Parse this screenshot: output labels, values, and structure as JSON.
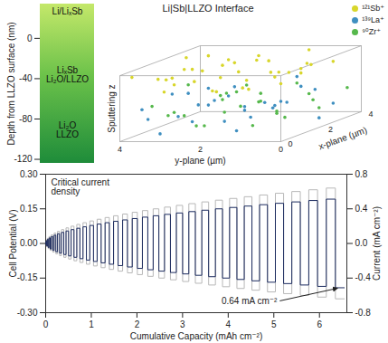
{
  "chart_data": [
    {
      "type": "layers",
      "ylabel": "Depth from LLZO surface (nm)",
      "ylim": [
        -124,
        34
      ],
      "yticks": [
        -120,
        -80,
        -40,
        0
      ],
      "layers": [
        {
          "label": "Li/LiₓSb",
          "depth": 27
        },
        {
          "label": "LiₓSb\nLi₂O/LLZO",
          "depth": -36
        },
        {
          "label": "Li₂O\nLLZO",
          "depth": -91
        }
      ]
    },
    {
      "type": "scatter3d",
      "title": "Li|Sb|LLZO Interface",
      "xlabel": "x-plane (µm)",
      "ylabel": "y-plane (µm)",
      "zlabel": "Sputtering z",
      "xlim": [
        0,
        4
      ],
      "xticks": [
        0,
        2,
        4
      ],
      "ylim": [
        0,
        4
      ],
      "yticks": [
        0,
        2,
        4
      ],
      "zlim": [
        0,
        1
      ],
      "legend": "top-right",
      "series": [
        {
          "name": "¹²¹Sb⁺",
          "color": "#d8d62b",
          "points": [
            [
              0.2,
              3.8,
              0.95
            ],
            [
              0.5,
              3.1,
              0.88
            ],
            [
              0.9,
              2.4,
              0.97
            ],
            [
              1.3,
              1.7,
              0.91
            ],
            [
              1.7,
              0.9,
              0.86
            ],
            [
              2.1,
              0.3,
              0.93
            ],
            [
              2.6,
              3.5,
              0.8
            ],
            [
              3.0,
              2.8,
              0.9
            ],
            [
              3.4,
              2.0,
              0.84
            ],
            [
              3.8,
              1.2,
              0.96
            ],
            [
              0.3,
              1.1,
              0.78
            ],
            [
              0.7,
              0.5,
              0.9
            ],
            [
              1.1,
              3.6,
              0.82
            ],
            [
              1.5,
              2.9,
              0.74
            ],
            [
              1.9,
              2.1,
              0.98
            ],
            [
              2.3,
              1.4,
              0.79
            ],
            [
              2.7,
              0.7,
              0.88
            ],
            [
              3.1,
              3.9,
              0.92
            ],
            [
              3.5,
              3.2,
              0.76
            ],
            [
              3.9,
              2.5,
              0.86
            ],
            [
              0.6,
              2.0,
              0.7
            ],
            [
              1.0,
              1.3,
              0.68
            ],
            [
              1.4,
              0.2,
              0.95
            ],
            [
              1.8,
              3.3,
              0.89
            ],
            [
              2.2,
              2.6,
              0.72
            ],
            [
              2.6,
              1.9,
              0.94
            ],
            [
              3.0,
              1.0,
              0.7
            ],
            [
              3.4,
              0.4,
              0.83
            ],
            [
              3.8,
              3.7,
              0.87
            ],
            [
              0.1,
              2.7,
              0.85
            ],
            [
              2.0,
              1.0,
              0.65
            ],
            [
              1.2,
              2.2,
              0.62
            ],
            [
              2.9,
              2.3,
              0.6
            ],
            [
              0.8,
              3.3,
              0.66
            ],
            [
              3.6,
              1.6,
              0.64
            ],
            [
              2.4,
              3.9,
              0.69
            ]
          ]
        },
        {
          "name": "¹³⁹La⁺",
          "color": "#3f8fc0",
          "points": [
            [
              0.3,
              3.6,
              0.45
            ],
            [
              0.7,
              2.9,
              0.3
            ],
            [
              1.1,
              2.2,
              0.5
            ],
            [
              1.5,
              1.5,
              0.2
            ],
            [
              1.9,
              0.8,
              0.38
            ],
            [
              2.3,
              0.2,
              0.1
            ],
            [
              2.7,
              3.4,
              0.25
            ],
            [
              3.1,
              2.7,
              0.48
            ],
            [
              3.5,
              1.9,
              0.15
            ],
            [
              3.9,
              1.1,
              0.35
            ],
            [
              0.4,
              1.3,
              0.12
            ],
            [
              0.8,
              0.6,
              0.42
            ],
            [
              1.2,
              3.9,
              0.2
            ],
            [
              1.6,
              3.1,
              0.55
            ],
            [
              2.0,
              2.4,
              0.08
            ],
            [
              2.4,
              1.6,
              0.32
            ],
            [
              2.8,
              0.9,
              0.52
            ],
            [
              3.2,
              0.3,
              0.22
            ],
            [
              3.6,
              3.6,
              0.4
            ],
            [
              0.2,
              2.3,
              0.28
            ],
            [
              1.0,
              1.8,
              0.58
            ],
            [
              1.8,
              2.7,
              0.35
            ],
            [
              2.6,
              2.2,
              0.18
            ],
            [
              3.4,
              1.3,
              0.6
            ],
            [
              0.6,
              3.3,
              0.05
            ],
            [
              2.2,
              3.8,
              0.47
            ],
            [
              3.0,
              1.5,
              0.27
            ],
            [
              3.8,
              2.8,
              0.1
            ]
          ]
        },
        {
          "name": "⁹⁰Zr⁺",
          "color": "#56b84c",
          "points": [
            [
              0.4,
              3.0,
              0.35
            ],
            [
              0.8,
              2.3,
              0.15
            ],
            [
              1.2,
              1.6,
              0.4
            ],
            [
              1.6,
              0.9,
              0.28
            ],
            [
              2.0,
              0.3,
              0.5
            ],
            [
              2.4,
              3.6,
              0.12
            ],
            [
              2.8,
              2.9,
              0.38
            ],
            [
              3.2,
              2.1,
              0.25
            ],
            [
              3.6,
              1.4,
              0.48
            ],
            [
              0.2,
              0.8,
              0.22
            ],
            [
              0.6,
              0.2,
              0.3
            ],
            [
              1.0,
              3.7,
              0.42
            ],
            [
              1.4,
              2.8,
              0.08
            ],
            [
              1.8,
              2.0,
              0.55
            ],
            [
              2.2,
              1.2,
              0.18
            ],
            [
              2.6,
              0.5,
              0.34
            ],
            [
              3.0,
              3.8,
              0.52
            ],
            [
              3.4,
              3.1,
              0.06
            ],
            [
              3.8,
              2.4,
              0.3
            ],
            [
              0.9,
              1.0,
              0.5
            ],
            [
              1.7,
              3.5,
              0.25
            ],
            [
              2.5,
              2.6,
              0.45
            ],
            [
              3.3,
              0.7,
              0.14
            ],
            [
              0.5,
              1.7,
              0.58
            ],
            [
              2.1,
              1.9,
              0.62
            ],
            [
              3.7,
              0.2,
              0.4
            ]
          ]
        }
      ]
    },
    {
      "type": "line",
      "xlabel": "Cumulative Capacity (mAh cm⁻²)",
      "ylabel": "Cell Potential (V)",
      "y2label": "Current (mA cm⁻²)",
      "xlim": [
        0,
        6.6
      ],
      "xticks": [
        0,
        1,
        2,
        3,
        4,
        5,
        6
      ],
      "ylim": [
        -0.3,
        0.3
      ],
      "yticks": [
        {
          "value": -0.3,
          "label": "-0.30"
        },
        -0.15,
        {
          "value": 0,
          "label": "0.00"
        },
        0.15,
        {
          "value": 0.3,
          "label": "0.30"
        }
      ],
      "y2lim": [
        -0.8,
        0.8
      ],
      "y2ticks": [
        -0.8,
        -0.4,
        {
          "value": 0,
          "label": "0.0"
        },
        0.4,
        0.8
      ],
      "annotations": [
        "Critical current\ndensity",
        "0.64 mA cm⁻²"
      ],
      "x": [
        0,
        0.006,
        0.012,
        0.025,
        0.037,
        0.056,
        0.074,
        0.099,
        0.124,
        0.155,
        0.186,
        0.223,
        0.26,
        0.304,
        0.347,
        0.397,
        0.446,
        0.502,
        0.558,
        0.62,
        0.682,
        0.75,
        0.818,
        0.893,
        0.967,
        1.048,
        1.128,
        1.215,
        1.302,
        1.395,
        1.488,
        1.587,
        1.686,
        1.792,
        1.897,
        2.009,
        2.12,
        2.238,
        2.356,
        2.48,
        2.604,
        2.734,
        2.864,
        3.001,
        3.137,
        3.28,
        3.422,
        3.571,
        3.72,
        3.875,
        4.03,
        4.191,
        4.352,
        4.52,
        4.687,
        4.861,
        5.034,
        5.214,
        5.394,
        5.58,
        5.766,
        5.958,
        6.15,
        6.349,
        6.547
      ],
      "series": [
        {
          "name": "Current",
          "axis": "y2",
          "color": "#b8b8b8",
          "values": [
            0.02,
            -0.02,
            0.04,
            -0.04,
            0.06,
            -0.06,
            0.08,
            -0.08,
            0.1,
            -0.1,
            0.12,
            -0.12,
            0.14,
            -0.14,
            0.16,
            -0.16,
            0.18,
            -0.18,
            0.2,
            -0.2,
            0.22,
            -0.22,
            0.24,
            -0.24,
            0.26,
            -0.26,
            0.28,
            -0.28,
            0.3,
            -0.3,
            0.32,
            -0.32,
            0.34,
            -0.34,
            0.36,
            -0.36,
            0.38,
            -0.38,
            0.4,
            -0.4,
            0.42,
            -0.42,
            0.44,
            -0.44,
            0.46,
            -0.46,
            0.48,
            -0.48,
            0.5,
            -0.5,
            0.52,
            -0.52,
            0.54,
            -0.54,
            0.56,
            -0.56,
            0.58,
            -0.58,
            0.6,
            -0.6,
            0.62,
            -0.62,
            0.64,
            -0.64,
            -0.64
          ]
        },
        {
          "name": "Cell Potential",
          "color": "#1b2a5e",
          "values": [
            0.006,
            -0.006,
            0.012,
            -0.012,
            0.018,
            -0.018,
            0.024,
            -0.024,
            0.03,
            -0.03,
            0.036,
            -0.036,
            0.042,
            -0.042,
            0.048,
            -0.048,
            0.054,
            -0.054,
            0.06,
            -0.06,
            0.066,
            -0.066,
            0.072,
            -0.072,
            0.078,
            -0.078,
            0.084,
            -0.084,
            0.09,
            -0.09,
            0.096,
            -0.096,
            0.102,
            -0.102,
            0.108,
            -0.108,
            0.114,
            -0.114,
            0.12,
            -0.12,
            0.126,
            -0.126,
            0.132,
            -0.132,
            0.138,
            -0.138,
            0.144,
            -0.144,
            0.15,
            -0.15,
            0.156,
            -0.156,
            0.162,
            -0.162,
            0.168,
            -0.168,
            0.174,
            -0.174,
            0.18,
            -0.18,
            0.186,
            -0.186,
            0.192,
            -0.192,
            -0.192
          ]
        }
      ]
    }
  ]
}
